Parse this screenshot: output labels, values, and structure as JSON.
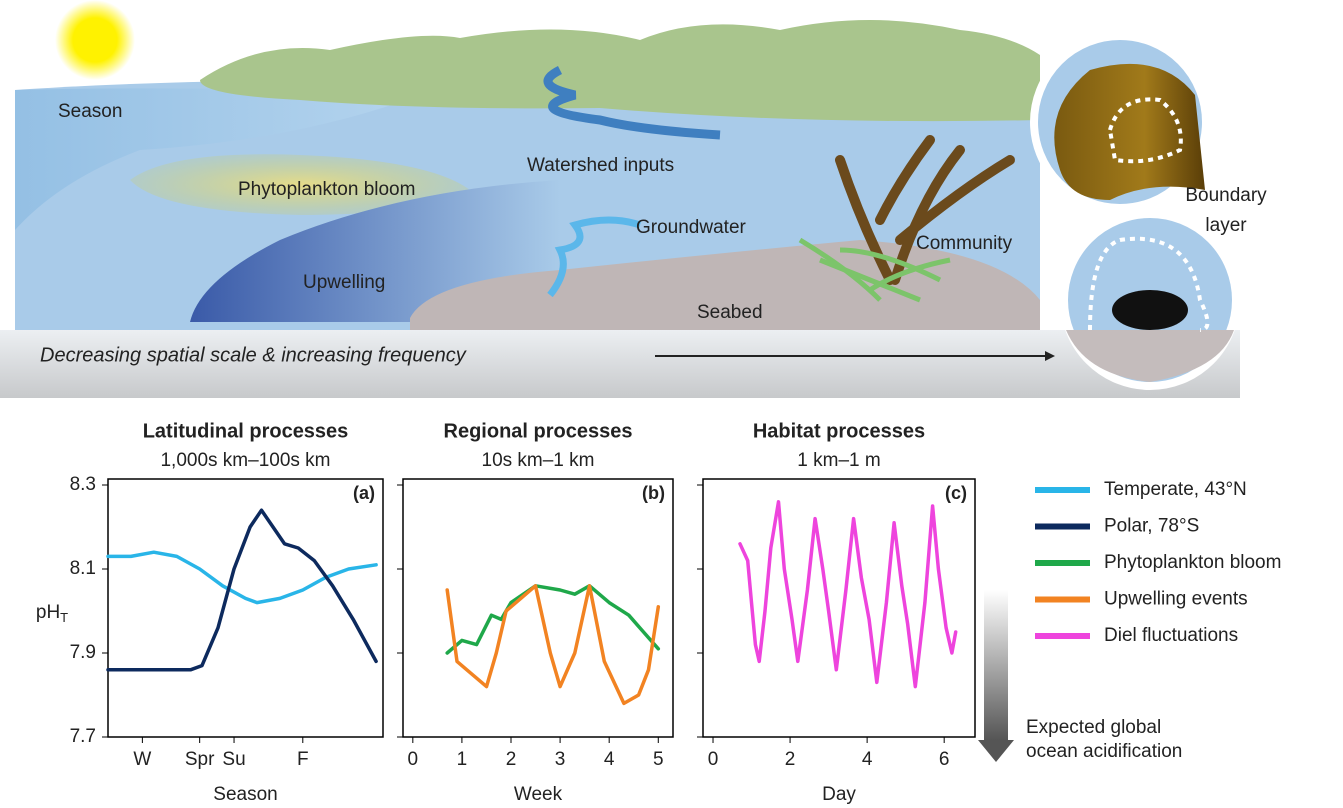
{
  "illustration": {
    "labels": {
      "season": "Season",
      "phytoplankton": "Phytoplankton bloom",
      "watershed": "Watershed inputs",
      "groundwater": "Groundwater",
      "upwelling": "Upwelling",
      "community": "Community",
      "seabed": "Seabed",
      "boundary": [
        "Boundary",
        "layer"
      ]
    },
    "caption": "Decreasing spatial scale & increasing frequency"
  },
  "acidification_note": [
    "Expected global",
    "ocean acidification"
  ],
  "chart_data": [
    {
      "type": "line",
      "title": "Latitudinal processes",
      "subtitle": "1,000s km–100s km",
      "annotation": "(a)",
      "xlabel": "Season",
      "ylabel": "pH",
      "ylabel_subscript": "T",
      "ytick_labels": true,
      "xlim": [
        0,
        12
      ],
      "xticks": [
        {
          "value": 1.5,
          "label": "W"
        },
        {
          "value": 4,
          "label": "Spr"
        },
        {
          "value": 5.5,
          "label": "Su"
        },
        {
          "value": 8.5,
          "label": "F"
        }
      ],
      "ylim": [
        7.7,
        8.3
      ],
      "yticks": [
        7.7,
        7.9,
        8.1,
        8.3
      ],
      "series": [
        {
          "name": "Temperate, 43°N",
          "color": "#29b5e8",
          "x": [
            0,
            1,
            2,
            3,
            4,
            5,
            6,
            6.5,
            7.5,
            8.5,
            9.5,
            10.5,
            11.7
          ],
          "values": [
            8.13,
            8.13,
            8.14,
            8.13,
            8.1,
            8.06,
            8.03,
            8.02,
            8.03,
            8.05,
            8.08,
            8.1,
            8.11
          ]
        },
        {
          "name": "Polar, 78°S",
          "color": "#0d2a5e",
          "x": [
            0,
            3.6,
            4.1,
            4.8,
            5.5,
            6.2,
            6.7,
            7.2,
            7.7,
            8.3,
            9,
            9.8,
            10.7,
            11.7
          ],
          "values": [
            7.86,
            7.86,
            7.87,
            7.96,
            8.1,
            8.2,
            8.24,
            8.2,
            8.16,
            8.15,
            8.12,
            8.06,
            7.98,
            7.88
          ]
        }
      ]
    },
    {
      "type": "line",
      "title": "Regional processes",
      "subtitle": "10s km–1 km",
      "annotation": "(b)",
      "xlabel": "Week",
      "ytick_labels": false,
      "xlim": [
        -0.2,
        5.3
      ],
      "xticks": [
        0,
        1,
        2,
        3,
        4,
        5
      ],
      "ylim": [
        7.7,
        8.3
      ],
      "yticks": [
        7.7,
        7.9,
        8.1,
        8.3
      ],
      "series": [
        {
          "name": "Phytoplankton bloom",
          "color": "#1fa84a",
          "x": [
            0.7,
            1.0,
            1.3,
            1.6,
            1.8,
            2.0,
            2.5,
            3.0,
            3.3,
            3.6,
            4.0,
            4.4,
            4.7,
            5.0
          ],
          "values": [
            7.9,
            7.93,
            7.92,
            7.99,
            7.98,
            8.02,
            8.06,
            8.05,
            8.04,
            8.06,
            8.02,
            7.99,
            7.95,
            7.91
          ]
        },
        {
          "name": "Upwelling  events",
          "color": "#f28322",
          "x": [
            0.7,
            0.9,
            1.1,
            1.5,
            1.7,
            1.9,
            2.2,
            2.5,
            2.8,
            3.0,
            3.3,
            3.6,
            3.9,
            4.3,
            4.6,
            4.8,
            5.0
          ],
          "values": [
            8.05,
            7.88,
            7.86,
            7.82,
            7.9,
            8.0,
            8.03,
            8.06,
            7.9,
            7.82,
            7.9,
            8.06,
            7.88,
            7.78,
            7.8,
            7.86,
            8.01
          ]
        }
      ]
    },
    {
      "type": "line",
      "title": "Habitat processes",
      "subtitle": "1 km–1 m",
      "annotation": "(c)",
      "xlabel": "Day",
      "ytick_labels": false,
      "xlim": [
        -0.26,
        6.8
      ],
      "xticks": [
        0,
        2,
        4,
        6
      ],
      "ylim": [
        7.7,
        8.3
      ],
      "yticks": [
        7.7,
        7.9,
        8.1,
        8.3
      ],
      "series": [
        {
          "name": "Diel fluctuations",
          "color": "#ee44dd",
          "x": [
            0.7,
            0.9,
            1.0,
            1.1,
            1.2,
            1.35,
            1.5,
            1.7,
            1.85,
            2.05,
            2.2,
            2.45,
            2.65,
            2.85,
            3.0,
            3.2,
            3.45,
            3.65,
            3.85,
            4.05,
            4.25,
            4.5,
            4.7,
            4.9,
            5.05,
            5.25,
            5.5,
            5.7,
            5.85,
            6.05,
            6.2,
            6.3
          ],
          "values": [
            8.16,
            8.12,
            8.02,
            7.92,
            7.88,
            8.0,
            8.15,
            8.26,
            8.1,
            7.98,
            7.88,
            8.05,
            8.22,
            8.1,
            8.0,
            7.86,
            8.05,
            8.22,
            8.08,
            7.98,
            7.83,
            8.02,
            8.21,
            8.06,
            7.97,
            7.82,
            8.02,
            8.25,
            8.1,
            7.96,
            7.9,
            7.95
          ]
        }
      ]
    }
  ]
}
